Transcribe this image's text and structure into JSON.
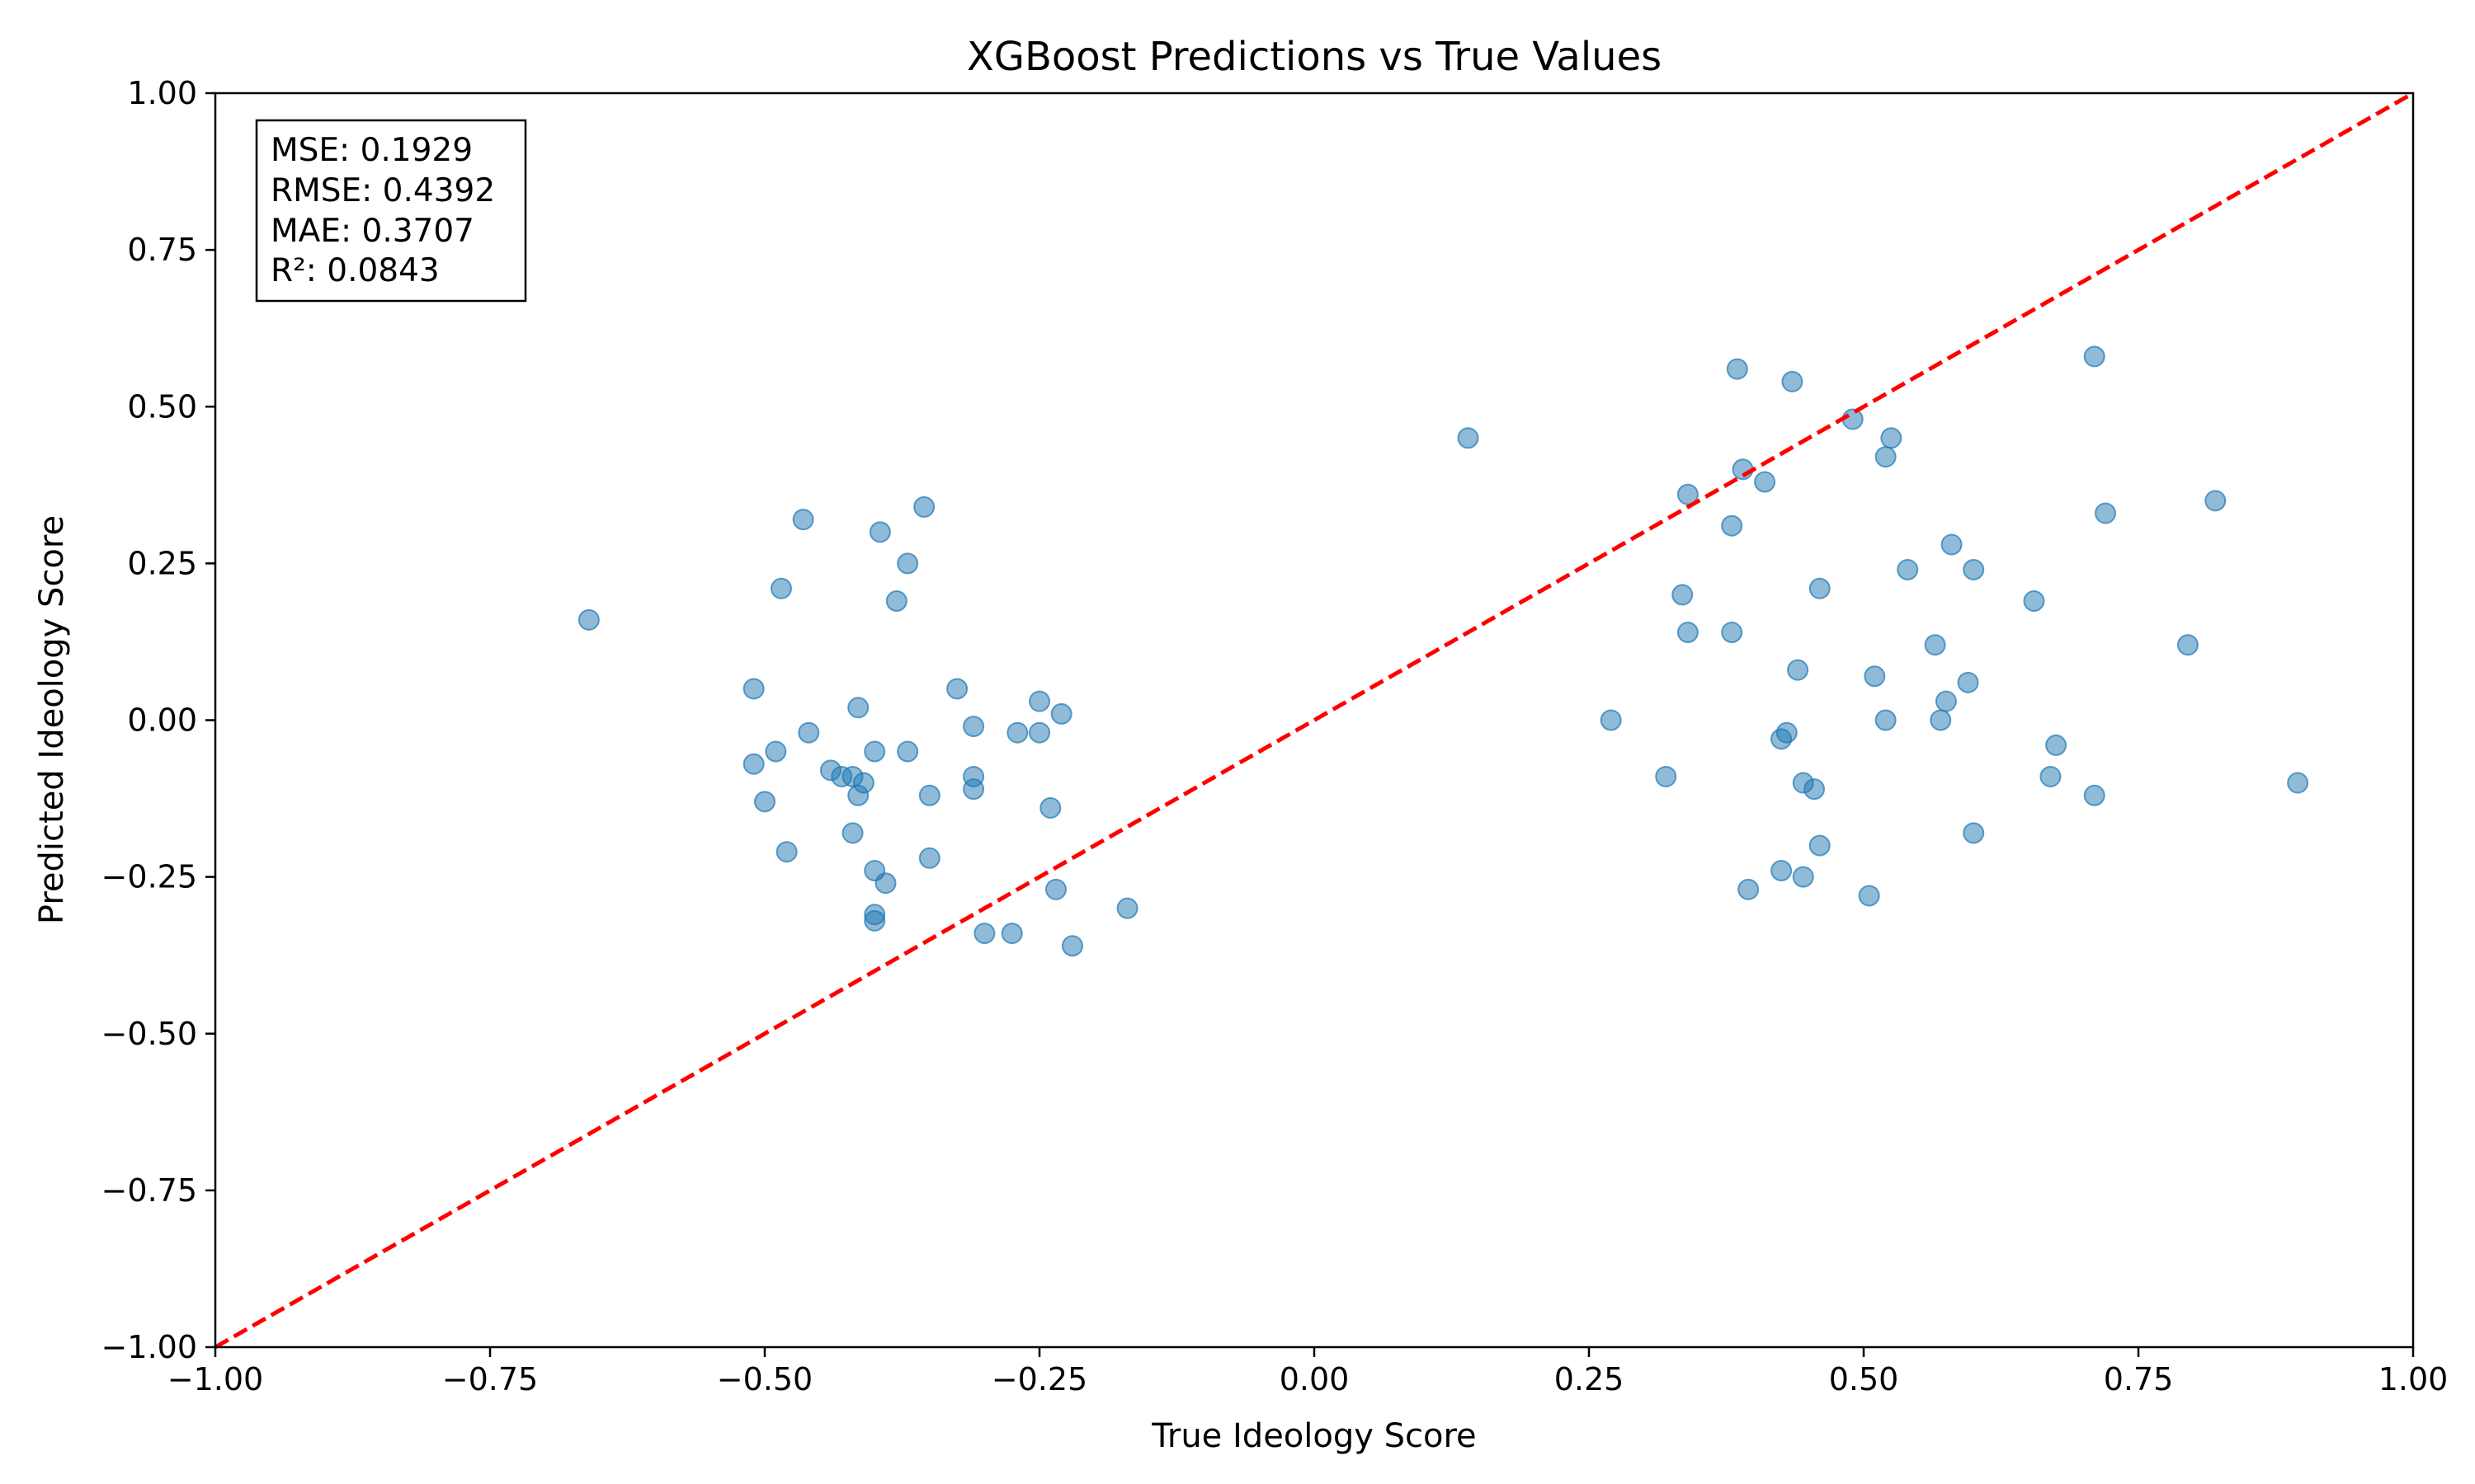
{
  "chart_data": {
    "type": "scatter",
    "title": "XGBoost Predictions vs True Values",
    "xlabel": "True Ideology Score",
    "ylabel": "Predicted Ideology Score",
    "xlim": [
      -1.0,
      1.0
    ],
    "ylim": [
      -1.0,
      1.0
    ],
    "xticks": [
      "−1.00",
      "−0.75",
      "−0.50",
      "−0.25",
      "0.00",
      "0.25",
      "0.50",
      "0.75",
      "1.00"
    ],
    "yticks": [
      "−1.00",
      "−0.75",
      "−0.50",
      "−0.25",
      "0.00",
      "0.25",
      "0.50",
      "0.75",
      "1.00"
    ],
    "grid": false,
    "point_color": "#1f77b4",
    "reference_line": {
      "from": [
        -1.0,
        -1.0
      ],
      "to": [
        1.0,
        1.0
      ],
      "color": "#ff0000",
      "style": "dashed"
    },
    "stats": [
      "MSE: 0.1929",
      "RMSE: 0.4392",
      "MAE: 0.3707",
      "R²: 0.0843"
    ],
    "stats_position": "top-left",
    "points": [
      [
        -0.66,
        0.16
      ],
      [
        -0.51,
        0.05
      ],
      [
        -0.51,
        -0.07
      ],
      [
        -0.5,
        -0.13
      ],
      [
        -0.49,
        -0.05
      ],
      [
        -0.485,
        0.21
      ],
      [
        -0.48,
        -0.21
      ],
      [
        -0.465,
        0.32
      ],
      [
        -0.46,
        -0.02
      ],
      [
        -0.44,
        -0.08
      ],
      [
        -0.43,
        -0.09
      ],
      [
        -0.42,
        -0.18
      ],
      [
        -0.42,
        -0.09
      ],
      [
        -0.415,
        0.02
      ],
      [
        -0.415,
        -0.12
      ],
      [
        -0.41,
        -0.1
      ],
      [
        -0.4,
        -0.05
      ],
      [
        -0.4,
        -0.24
      ],
      [
        -0.4,
        -0.31
      ],
      [
        -0.4,
        -0.32
      ],
      [
        -0.395,
        0.3
      ],
      [
        -0.39,
        -0.26
      ],
      [
        -0.38,
        0.19
      ],
      [
        -0.37,
        0.25
      ],
      [
        -0.37,
        -0.05
      ],
      [
        -0.355,
        0.34
      ],
      [
        -0.35,
        -0.12
      ],
      [
        -0.35,
        -0.22
      ],
      [
        -0.325,
        0.05
      ],
      [
        -0.31,
        -0.01
      ],
      [
        -0.31,
        -0.09
      ],
      [
        -0.31,
        -0.11
      ],
      [
        -0.3,
        -0.34
      ],
      [
        -0.27,
        -0.02
      ],
      [
        -0.275,
        -0.34
      ],
      [
        -0.25,
        0.03
      ],
      [
        -0.25,
        -0.02
      ],
      [
        -0.24,
        -0.14
      ],
      [
        -0.235,
        -0.27
      ],
      [
        -0.23,
        0.01
      ],
      [
        -0.22,
        -0.36
      ],
      [
        -0.17,
        -0.3
      ],
      [
        0.14,
        0.45
      ],
      [
        0.27,
        0.0
      ],
      [
        0.32,
        -0.09
      ],
      [
        0.335,
        0.2
      ],
      [
        0.34,
        0.14
      ],
      [
        0.34,
        0.36
      ],
      [
        0.38,
        0.31
      ],
      [
        0.38,
        0.14
      ],
      [
        0.385,
        0.56
      ],
      [
        0.39,
        0.4
      ],
      [
        0.395,
        -0.27
      ],
      [
        0.41,
        0.38
      ],
      [
        0.425,
        -0.24
      ],
      [
        0.425,
        -0.03
      ],
      [
        0.43,
        -0.02
      ],
      [
        0.435,
        0.54
      ],
      [
        0.44,
        0.08
      ],
      [
        0.445,
        -0.1
      ],
      [
        0.445,
        -0.25
      ],
      [
        0.455,
        -0.11
      ],
      [
        0.46,
        -0.2
      ],
      [
        0.46,
        0.21
      ],
      [
        0.49,
        0.48
      ],
      [
        0.505,
        -0.28
      ],
      [
        0.51,
        0.07
      ],
      [
        0.52,
        0.42
      ],
      [
        0.52,
        0.0
      ],
      [
        0.525,
        0.45
      ],
      [
        0.54,
        0.24
      ],
      [
        0.565,
        0.12
      ],
      [
        0.57,
        0.0
      ],
      [
        0.575,
        0.03
      ],
      [
        0.58,
        0.28
      ],
      [
        0.595,
        0.06
      ],
      [
        0.6,
        0.24
      ],
      [
        0.6,
        -0.18
      ],
      [
        0.655,
        0.19
      ],
      [
        0.67,
        -0.09
      ],
      [
        0.675,
        -0.04
      ],
      [
        0.71,
        0.58
      ],
      [
        0.71,
        -0.12
      ],
      [
        0.72,
        0.33
      ],
      [
        0.795,
        0.12
      ],
      [
        0.82,
        0.35
      ],
      [
        0.895,
        -0.1
      ]
    ]
  }
}
